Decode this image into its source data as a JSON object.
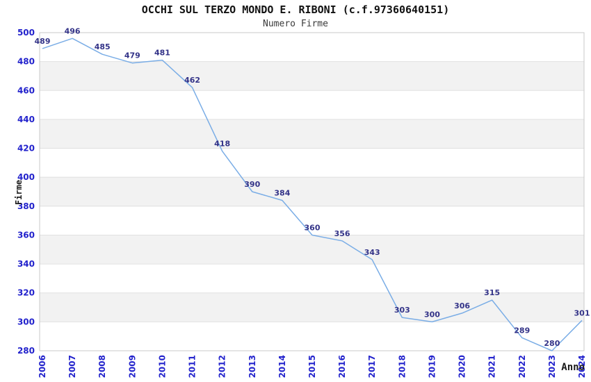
{
  "chart_data": {
    "type": "line",
    "title": "OCCHI SUL TERZO MONDO E. RIBONI (c.f.97360640151)",
    "subtitle": "Numero Firme",
    "xlabel": "Anno",
    "ylabel": "Firme",
    "categories": [
      "2006",
      "2007",
      "2008",
      "2009",
      "2010",
      "2011",
      "2012",
      "2013",
      "2014",
      "2015",
      "2016",
      "2017",
      "2018",
      "2019",
      "2020",
      "2021",
      "2022",
      "2023",
      "2024"
    ],
    "values": [
      489,
      496,
      485,
      479,
      481,
      462,
      418,
      390,
      384,
      360,
      356,
      343,
      303,
      300,
      306,
      315,
      289,
      280,
      301
    ],
    "ylim": [
      280,
      500
    ],
    "ytick_step": 20,
    "grid": "horizontal",
    "alternating_bands": true,
    "legend": "none",
    "data_labels_shown": true,
    "colors": {
      "line": "#7aade6",
      "data_label": "#333388",
      "tick_label": "#2222cc",
      "axis_title": "#1a1a1a",
      "band": "#f2f2f2",
      "gridline": "#e0e0e0",
      "border": "#c9c9c9",
      "background": "#ffffff"
    }
  }
}
